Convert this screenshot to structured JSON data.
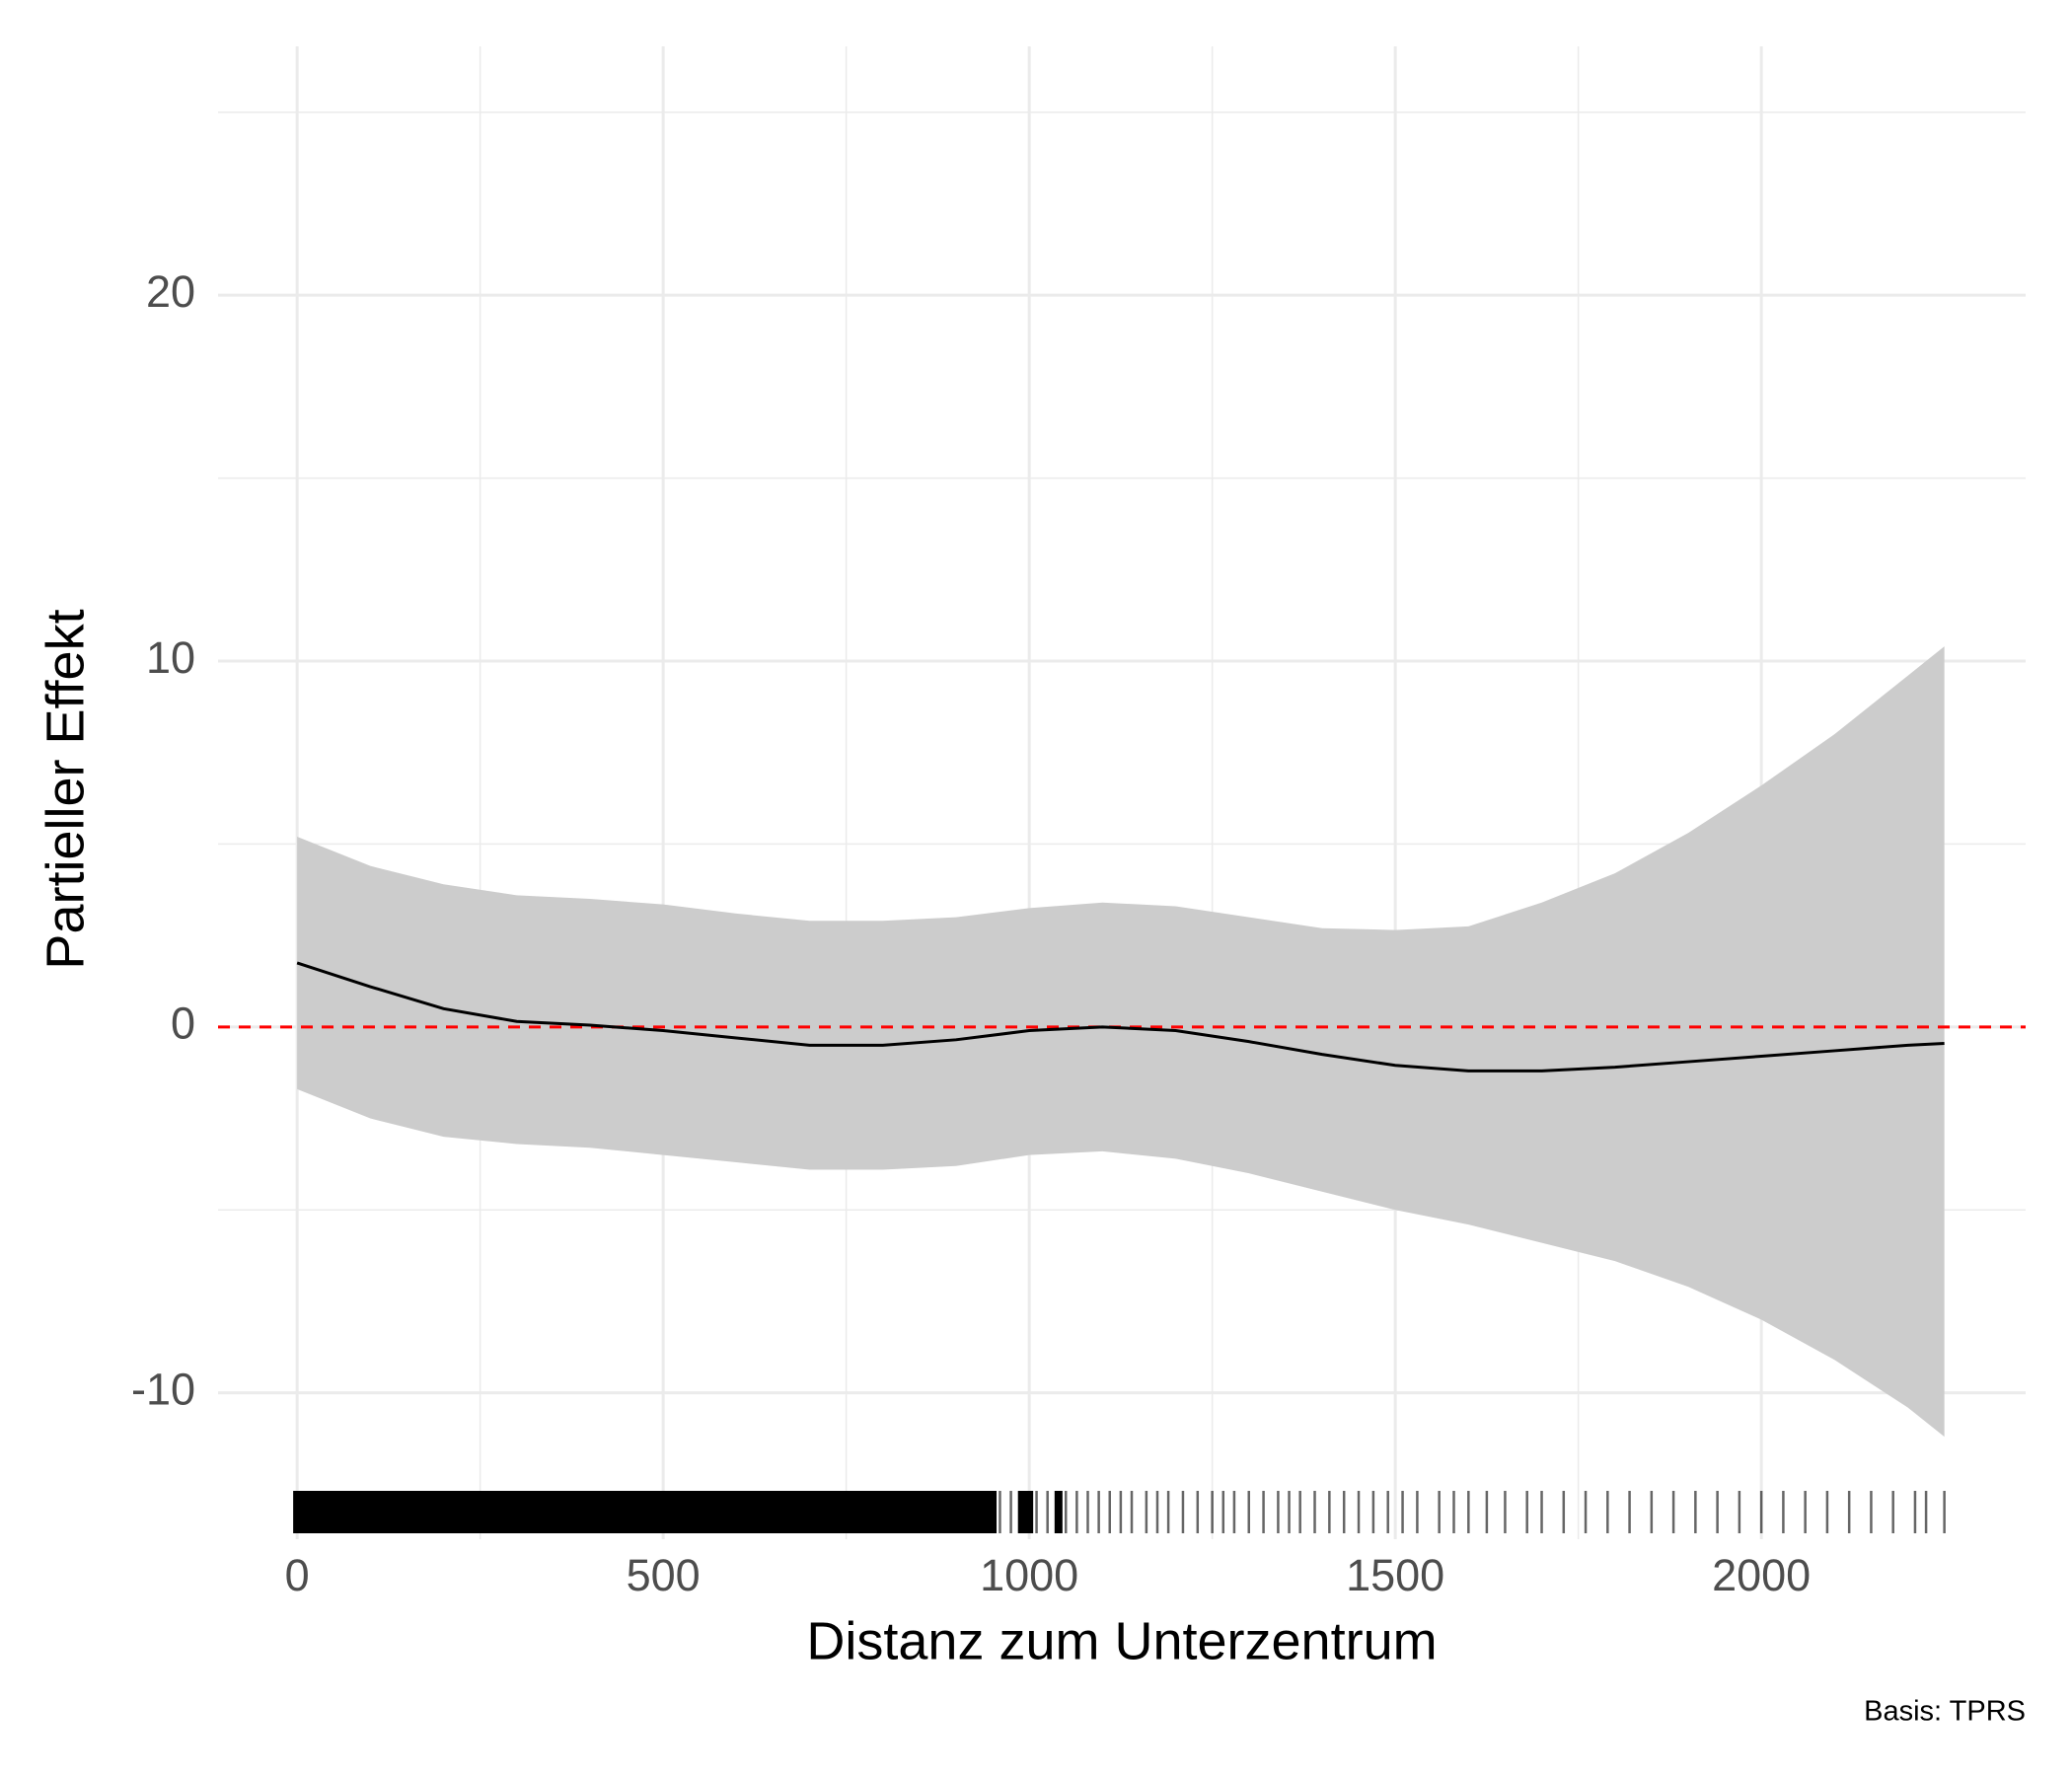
{
  "chart_data": {
    "type": "smooth",
    "x_label": "Distanz zum Unterzentrum",
    "y_label": "Partieller Effekt",
    "caption": "Basis: TPRS",
    "xlim": [
      -108,
      2361
    ],
    "ylim": [
      -14,
      26.8
    ],
    "xticks": [
      0,
      500,
      1000,
      1500,
      2000
    ],
    "yticks": [
      -10,
      0,
      10,
      20
    ],
    "x_minor_grid": [
      250,
      750,
      1250,
      1750
    ],
    "y_minor_grid": [
      -5,
      5,
      15,
      25
    ],
    "grid": true,
    "hline": {
      "value": 0,
      "color": "#ff0000"
    },
    "line_color": "#000000",
    "band_color": "#cccccc",
    "rug_color": "#000000",
    "x": [
      0,
      100,
      200,
      300,
      400,
      500,
      600,
      700,
      800,
      900,
      1000,
      1100,
      1200,
      1300,
      1400,
      1500,
      1600,
      1700,
      1800,
      1900,
      2000,
      2100,
      2200,
      2250
    ],
    "fit": [
      1.75,
      1.1,
      0.5,
      0.15,
      0.05,
      -0.1,
      -0.3,
      -0.5,
      -0.5,
      -0.35,
      -0.1,
      0.0,
      -0.1,
      -0.4,
      -0.75,
      -1.05,
      -1.2,
      -1.2,
      -1.1,
      -0.95,
      -0.8,
      -0.65,
      -0.5,
      -0.45
    ],
    "upper": [
      5.2,
      4.4,
      3.9,
      3.6,
      3.5,
      3.35,
      3.1,
      2.9,
      2.9,
      3.0,
      3.25,
      3.4,
      3.3,
      3.0,
      2.7,
      2.65,
      2.75,
      3.4,
      4.2,
      5.3,
      6.6,
      8.0,
      9.6,
      10.4
    ],
    "lower": [
      -1.7,
      -2.5,
      -3.0,
      -3.2,
      -3.3,
      -3.5,
      -3.7,
      -3.9,
      -3.9,
      -3.8,
      -3.5,
      -3.4,
      -3.6,
      -4.0,
      -4.5,
      -5.0,
      -5.4,
      -5.9,
      -6.4,
      -7.1,
      -8.0,
      -9.1,
      -10.4,
      -11.2
    ],
    "rug": [
      0,
      10,
      20,
      30,
      40,
      50,
      60,
      70,
      80,
      90,
      100,
      110,
      120,
      130,
      140,
      150,
      160,
      170,
      180,
      190,
      200,
      210,
      220,
      230,
      240,
      250,
      260,
      270,
      280,
      290,
      300,
      310,
      320,
      330,
      340,
      350,
      360,
      370,
      380,
      390,
      400,
      410,
      420,
      430,
      440,
      450,
      460,
      470,
      480,
      490,
      500,
      510,
      520,
      530,
      540,
      550,
      560,
      570,
      580,
      590,
      600,
      610,
      620,
      630,
      640,
      650,
      660,
      670,
      680,
      690,
      700,
      710,
      720,
      730,
      740,
      750,
      760,
      770,
      780,
      790,
      800,
      810,
      820,
      830,
      840,
      850,
      860,
      870,
      880,
      890,
      900,
      910,
      920,
      930,
      940,
      950,
      960,
      975,
      990,
      1000,
      1010,
      1025,
      1040,
      1050,
      1065,
      1080,
      1095,
      1110,
      1125,
      1140,
      1160,
      1175,
      1190,
      1210,
      1230,
      1250,
      1265,
      1280,
      1300,
      1320,
      1340,
      1355,
      1370,
      1390,
      1410,
      1430,
      1450,
      1470,
      1490,
      1510,
      1530,
      1560,
      1580,
      1600,
      1625,
      1650,
      1680,
      1700,
      1730,
      1760,
      1790,
      1820,
      1850,
      1880,
      1910,
      1940,
      1970,
      2000,
      2030,
      2060,
      2090,
      2120,
      2150,
      2180,
      2210,
      2225,
      2250
    ]
  }
}
